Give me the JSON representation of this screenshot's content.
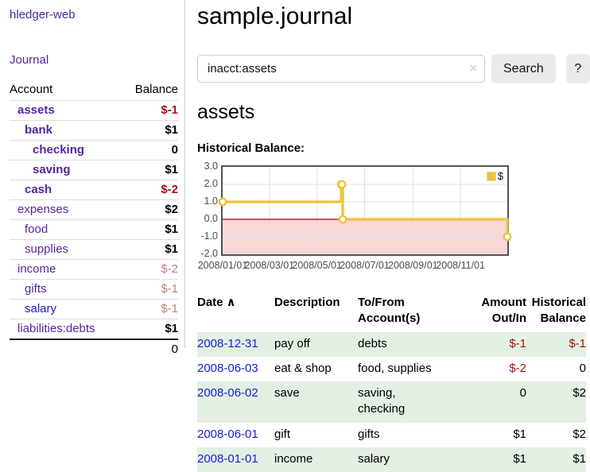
{
  "app_title": "hledger-web",
  "colors": {
    "link_purple": "#54269e",
    "link_blue": "#1d19e0",
    "negative_dark": "#a21414",
    "negative_light": "#c28080",
    "row_green": "#e3f0e3",
    "accent_gold": "#edc240",
    "chart_negative_fill": "#f9d8d8",
    "chart_zero_line": "#a40000"
  },
  "sidebar": {
    "journal_link": "Journal",
    "headers": {
      "account": "Account",
      "balance": "Balance"
    },
    "accounts": [
      {
        "name": "assets",
        "balance": "$-1",
        "indent": 1,
        "bold": true,
        "balance_style": "neg",
        "link_style": "purple"
      },
      {
        "name": "bank",
        "balance": "$1",
        "indent": 2,
        "bold": true,
        "balance_style": "pos",
        "link_style": "purple"
      },
      {
        "name": "checking",
        "balance": "0",
        "indent": 3,
        "bold": true,
        "balance_style": "pos",
        "link_style": "purple"
      },
      {
        "name": "saving",
        "balance": "$1",
        "indent": 3,
        "bold": true,
        "balance_style": "pos",
        "link_style": "purple"
      },
      {
        "name": "cash",
        "balance": "$-2",
        "indent": 2,
        "bold": true,
        "balance_style": "neg",
        "link_style": "purple"
      },
      {
        "name": "expenses",
        "balance": "$2",
        "indent": 1,
        "bold": false,
        "balance_style": "pos",
        "link_style": "purple"
      },
      {
        "name": "food",
        "balance": "$1",
        "indent": 2,
        "bold": false,
        "balance_style": "pos",
        "link_style": "purple"
      },
      {
        "name": "supplies",
        "balance": "$1",
        "indent": 2,
        "bold": false,
        "balance_style": "pos",
        "link_style": "purple"
      },
      {
        "name": "income",
        "balance": "$-2",
        "indent": 1,
        "bold": false,
        "balance_style": "neglight",
        "link_style": "purple"
      },
      {
        "name": "gifts",
        "balance": "$-1",
        "indent": 2,
        "bold": false,
        "balance_style": "neglight",
        "link_style": "purple"
      },
      {
        "name": "salary",
        "balance": "$-1",
        "indent": 2,
        "bold": false,
        "balance_style": "neglight",
        "link_style": "blue"
      },
      {
        "name": "liabilities:debts",
        "balance": "$1",
        "indent": 1,
        "bold": false,
        "balance_style": "pos",
        "link_style": "purple"
      }
    ],
    "total": "0"
  },
  "main": {
    "title": "sample.journal",
    "search": {
      "value": "inacct:assets",
      "clear_icon": "×",
      "search_button": "Search",
      "help_button": "?"
    },
    "account_heading": "assets",
    "chart_title": "Historical Balance:"
  },
  "chart_data": {
    "type": "line",
    "step": true,
    "title": "Historical Balance",
    "ylim": [
      -2.0,
      3.0
    ],
    "yticks": [
      "3.0",
      "2.0",
      "1.0",
      "0.0",
      "-1.0",
      "-2.0"
    ],
    "xticks": [
      "2008/01/01",
      "2008/03/01",
      "2008/05/01",
      "2008/07/01",
      "2008/09/01",
      "2008/11/01"
    ],
    "x_start": "2008/01/01",
    "x_end": "2008/12/31",
    "legend": [
      {
        "label": "$",
        "color": "#edc240"
      }
    ],
    "series": [
      {
        "name": "$",
        "color": "#edc240",
        "points": [
          {
            "date": "2008/01/01",
            "value": 1
          },
          {
            "date": "2008/06/01",
            "value": 2
          },
          {
            "date": "2008/06/02",
            "value": 2
          },
          {
            "date": "2008/06/03",
            "value": 0
          },
          {
            "date": "2008/12/31",
            "value": -1
          }
        ]
      }
    ],
    "grid": true,
    "legend_position": "top-right"
  },
  "register": {
    "headers": {
      "date": "Date",
      "sort_arrow": "∧",
      "description": "Description",
      "accounts": "To/From Account(s)",
      "amount": "Amount Out/In",
      "balance": "Historical Balance"
    },
    "rows": [
      {
        "date": "2008-12-31",
        "description": "pay off",
        "accounts": "debts",
        "amount": "$-1",
        "amount_neg": true,
        "balance": "$-1",
        "balance_neg": true,
        "shade": true
      },
      {
        "date": "2008-06-03",
        "description": "eat & shop",
        "accounts": "food, supplies",
        "amount": "$-2",
        "amount_neg": true,
        "balance": "0",
        "balance_neg": false,
        "shade": false
      },
      {
        "date": "2008-06-02",
        "description": "save",
        "accounts": "saving,\nchecking",
        "amount": "0",
        "amount_neg": false,
        "balance": "$2",
        "balance_neg": false,
        "shade": true
      },
      {
        "date": "2008-06-01",
        "description": "gift",
        "accounts": "gifts",
        "amount": "$1",
        "amount_neg": false,
        "balance": "$2",
        "balance_neg": false,
        "shade": false
      },
      {
        "date": "2008-01-01",
        "description": "income",
        "accounts": "salary",
        "amount": "$1",
        "amount_neg": false,
        "balance": "$1",
        "balance_neg": false,
        "shade": true
      }
    ]
  }
}
